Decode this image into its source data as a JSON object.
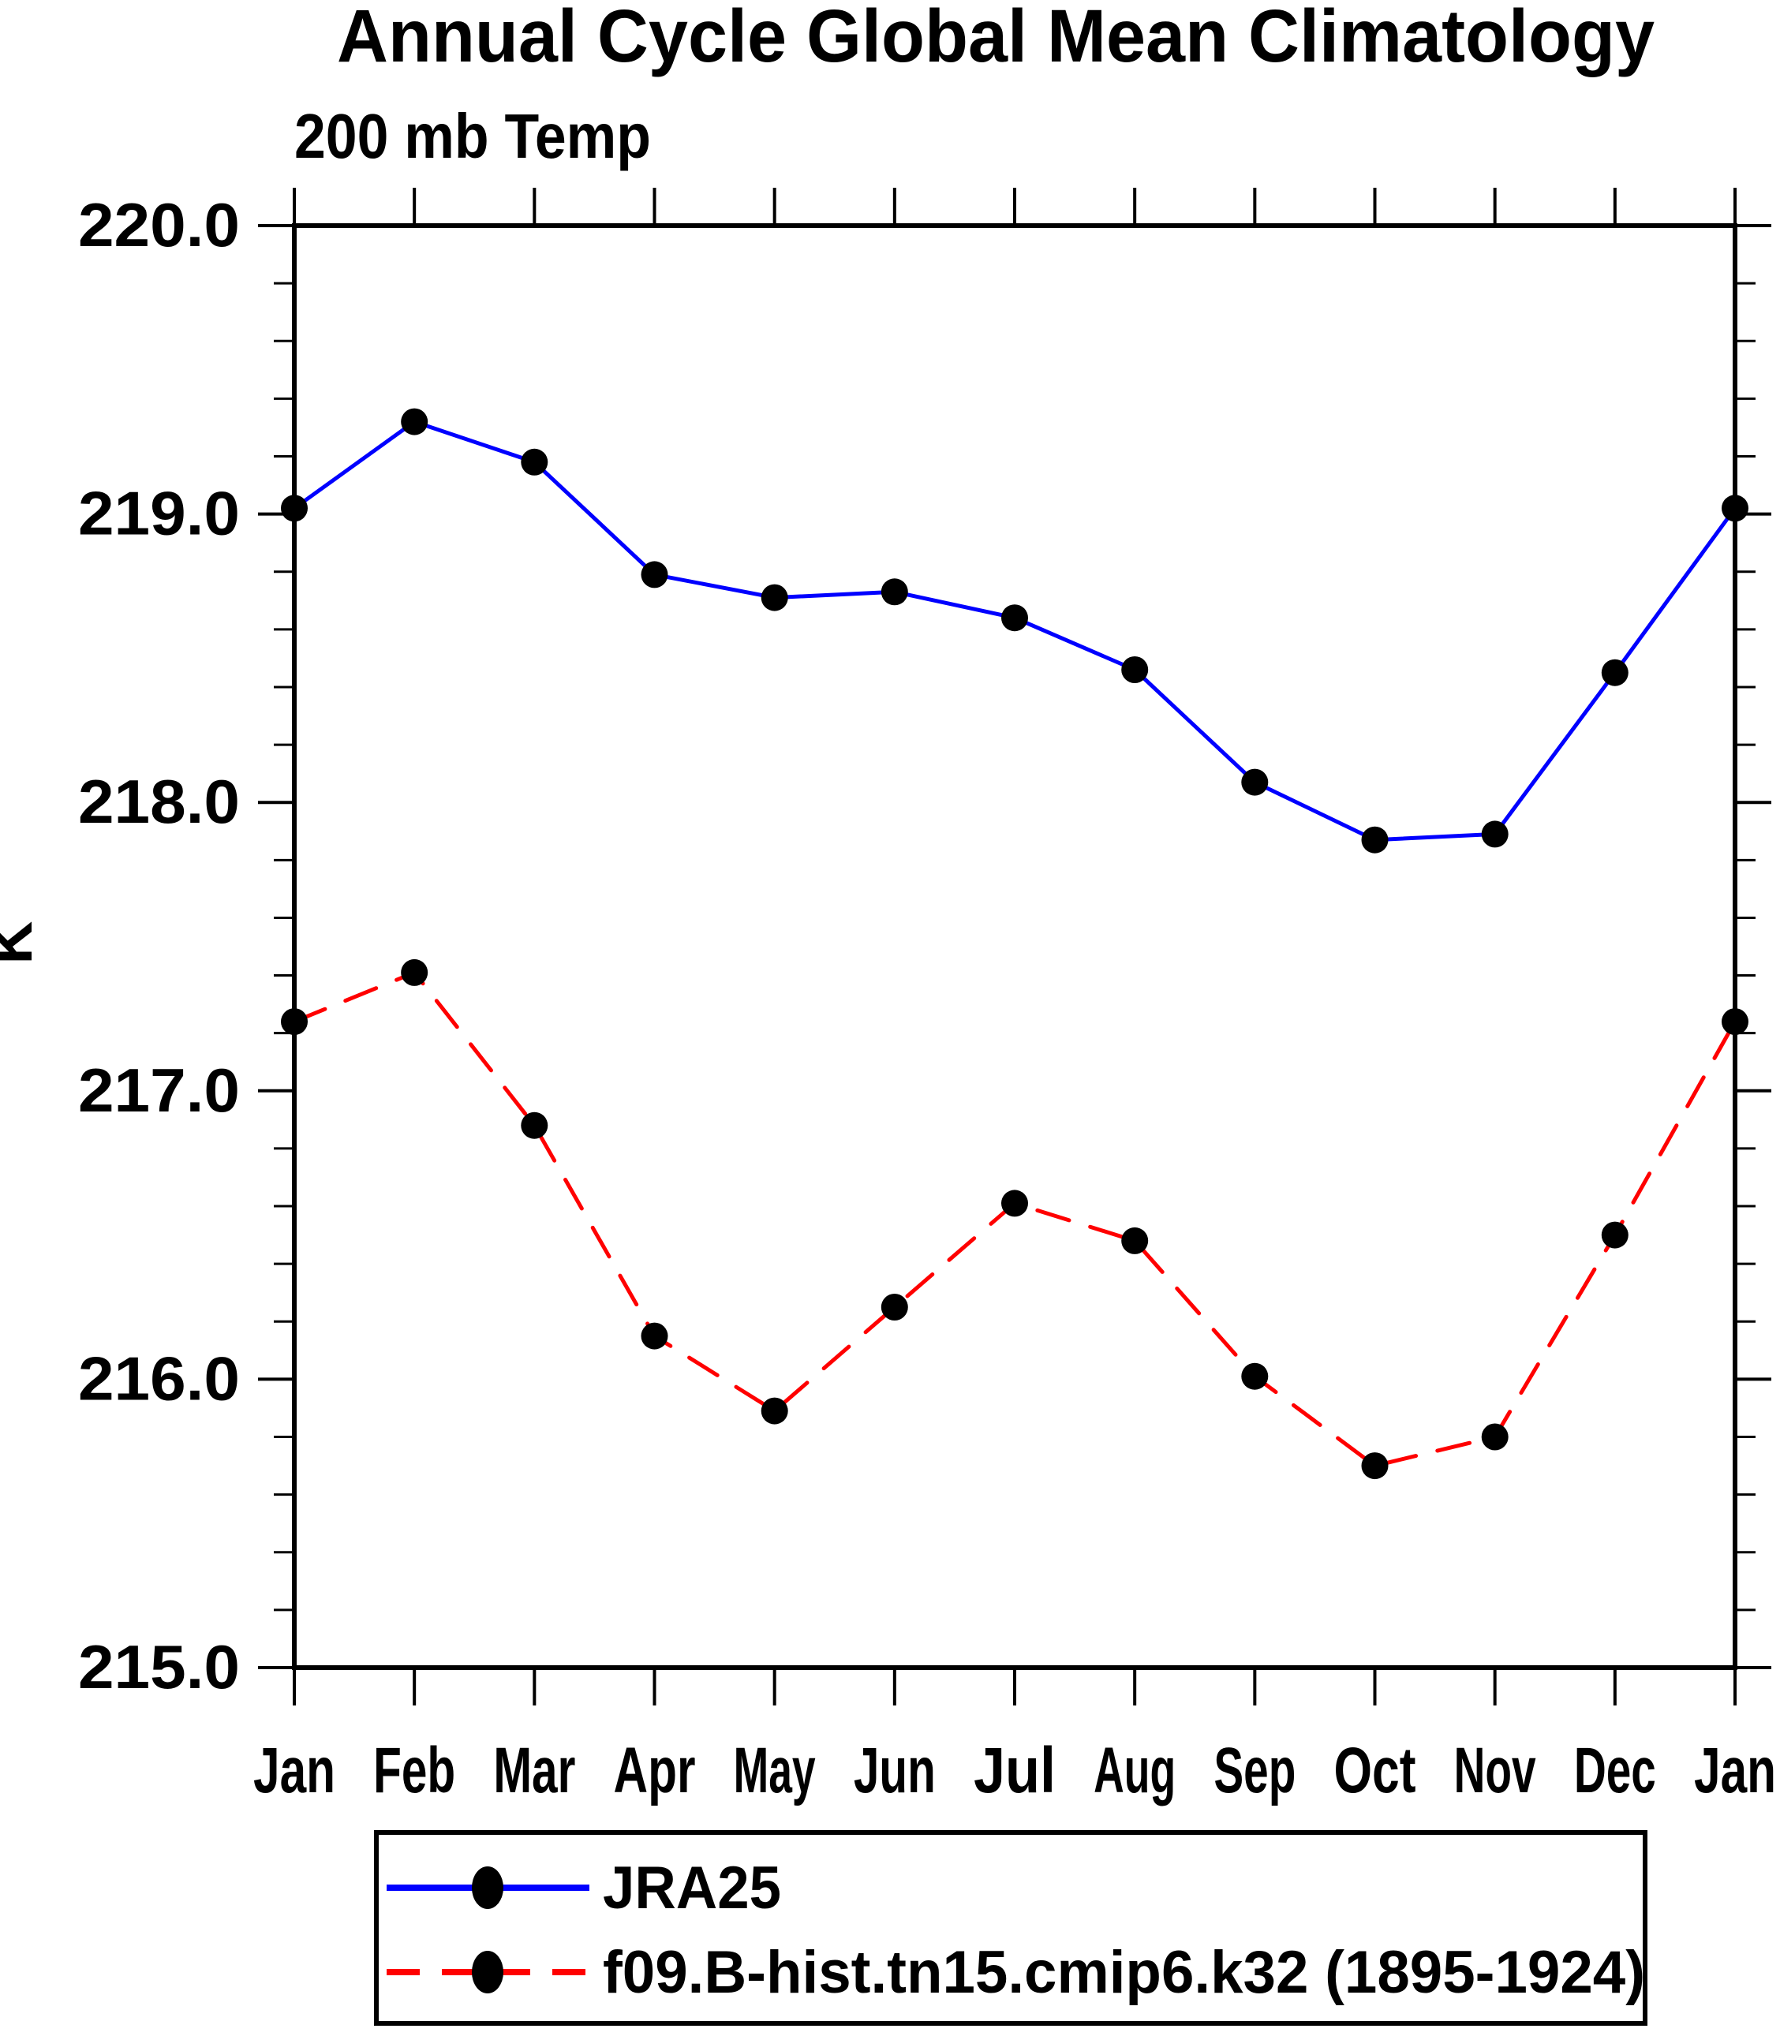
{
  "page": {
    "background": "#ffffff"
  },
  "header": {
    "title": "Annual Cycle Global Mean Climatology",
    "subtitle": "200 mb Temp"
  },
  "axes": {
    "ylabel": "K",
    "ytick_labels": [
      "220.0",
      "219.0",
      "218.0",
      "217.0",
      "216.0",
      "215.0"
    ],
    "xtick_labels": [
      "Jan",
      "Feb",
      "Mar",
      "Apr",
      "May",
      "Jun",
      "Jul",
      "Aug",
      "Sep",
      "Oct",
      "Nov",
      "Dec",
      "Jan"
    ]
  },
  "chart_data": {
    "type": "line",
    "title": "Annual Cycle Global Mean Climatology",
    "subtitle": "200 mb Temp",
    "ylabel": "K",
    "categories": [
      "Jan",
      "Feb",
      "Mar",
      "Apr",
      "May",
      "Jun",
      "Jul",
      "Aug",
      "Sep",
      "Oct",
      "Nov",
      "Dec",
      "Jan"
    ],
    "ylim": [
      215.0,
      220.0
    ],
    "ytick_major_step": 1.0,
    "ytick_minor_step": 0.2,
    "ytick_labels": [
      "220.0",
      "219.0",
      "218.0",
      "217.0",
      "216.0",
      "215.0"
    ],
    "grid": false,
    "legend_position": "bottom-left-box",
    "series": [
      {
        "name": "JRA25",
        "color": "#0000ff",
        "line_style": "solid",
        "marker": "filled-circle",
        "marker_color": "#000000",
        "values": [
          219.02,
          219.32,
          219.18,
          218.79,
          218.71,
          218.73,
          218.64,
          218.46,
          218.07,
          217.87,
          217.89,
          218.45,
          219.02
        ]
      },
      {
        "name": "f09.B-hist.tn15.cmip6.k32 (1895-1924)",
        "color": "#ff0000",
        "line_style": "dashed",
        "marker": "filled-circle",
        "marker_color": "#000000",
        "values": [
          217.24,
          217.41,
          216.88,
          216.15,
          215.89,
          216.25,
          216.61,
          216.48,
          216.01,
          215.7,
          215.8,
          216.5,
          217.24
        ]
      }
    ]
  },
  "legend": {
    "items": [
      {
        "label": "JRA25",
        "line": "blue-solid",
        "marker": "black-dot"
      },
      {
        "label": "f09.B-hist.tn15.cmip6.k32 (1895-1924)",
        "line": "red-dashed",
        "marker": "black-dot"
      }
    ]
  }
}
